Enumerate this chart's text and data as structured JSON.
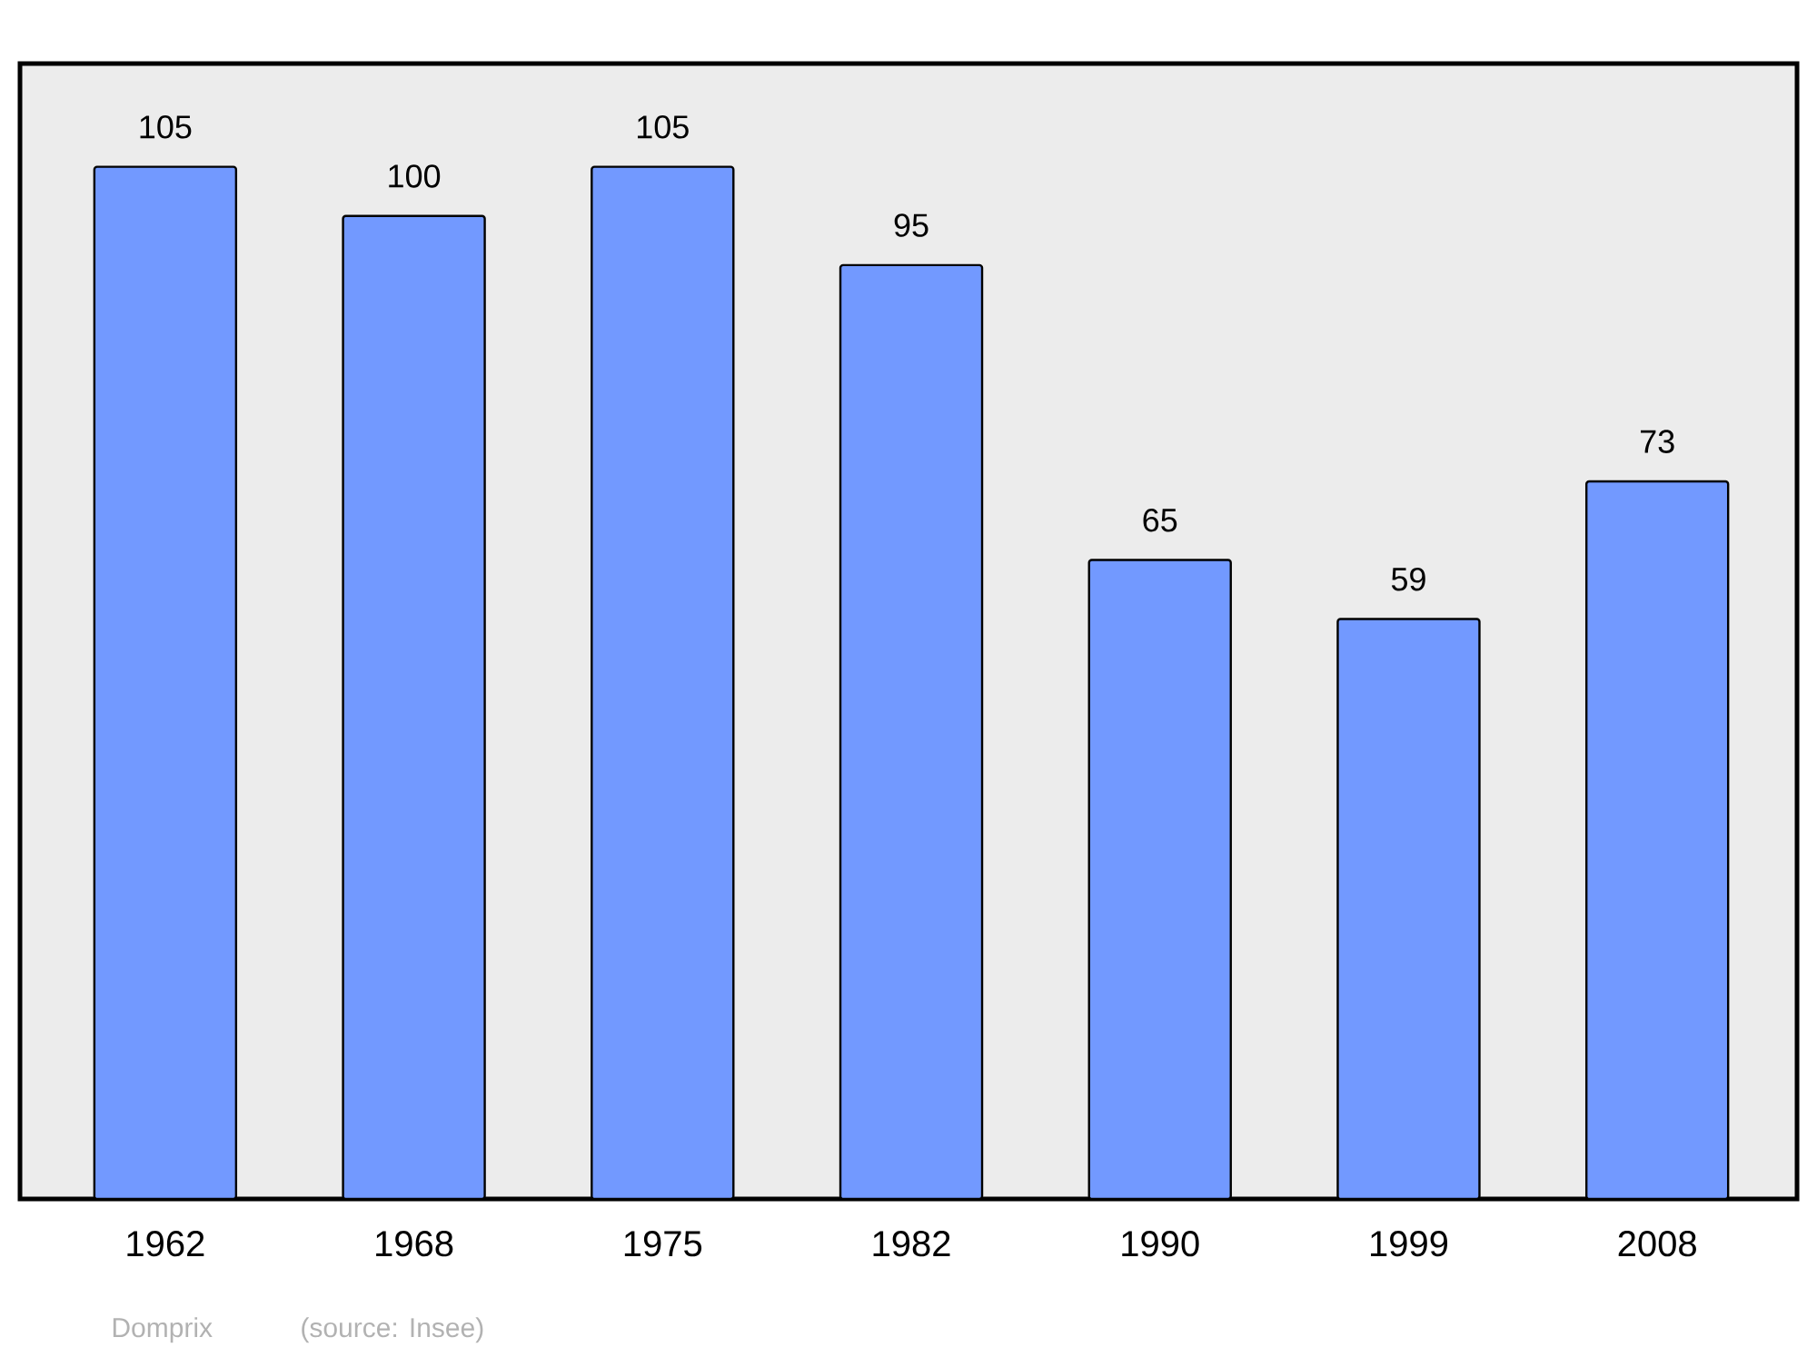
{
  "chart_data": {
    "type": "bar",
    "categories": [
      "1962",
      "1968",
      "1975",
      "1982",
      "1990",
      "1999",
      "2008"
    ],
    "values": [
      105,
      100,
      105,
      95,
      65,
      59,
      73
    ],
    "color": "#7299ff",
    "ylim": [
      0,
      115.5
    ],
    "data_labels": true,
    "annotations": [
      "Domprix",
      "(source: Insee)"
    ]
  }
}
